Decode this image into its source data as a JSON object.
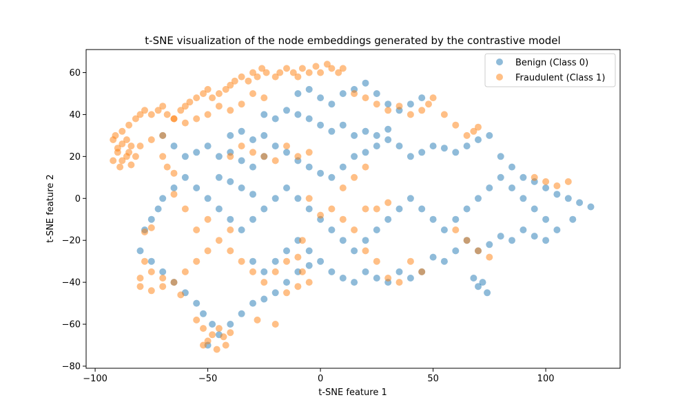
{
  "chart_data": {
    "type": "scatter",
    "title": "t-SNE visualization of the node embeddings generated by the contrastive model",
    "xlabel": "t-SNE feature 1",
    "ylabel": "t-SNE feature 2",
    "xlim": [
      -104,
      133
    ],
    "ylim": [
      -81,
      71
    ],
    "xticks": [
      -100,
      -50,
      0,
      50,
      100
    ],
    "yticks": [
      -80,
      -60,
      -40,
      -20,
      0,
      20,
      40,
      60
    ],
    "grid": false,
    "legend_position": "top-right",
    "series": [
      {
        "name": "Benign (Class 0)",
        "color": "#1f77b4",
        "alpha": 0.5,
        "points": [
          [
            -70,
            30
          ],
          [
            -65,
            25
          ],
          [
            -60,
            20
          ],
          [
            -55,
            22
          ],
          [
            -50,
            25
          ],
          [
            -45,
            20
          ],
          [
            -40,
            22
          ],
          [
            -35,
            18
          ],
          [
            -30,
            15
          ],
          [
            -25,
            20
          ],
          [
            -20,
            25
          ],
          [
            -15,
            22
          ],
          [
            -10,
            18
          ],
          [
            -5,
            15
          ],
          [
            0,
            12
          ],
          [
            5,
            10
          ],
          [
            10,
            15
          ],
          [
            15,
            20
          ],
          [
            20,
            22
          ],
          [
            25,
            25
          ],
          [
            30,
            28
          ],
          [
            35,
            25
          ],
          [
            40,
            20
          ],
          [
            45,
            22
          ],
          [
            50,
            25
          ],
          [
            55,
            24
          ],
          [
            60,
            22
          ],
          [
            65,
            25
          ],
          [
            70,
            28
          ],
          [
            75,
            30
          ],
          [
            80,
            20
          ],
          [
            85,
            15
          ],
          [
            90,
            10
          ],
          [
            95,
            8
          ],
          [
            100,
            5
          ],
          [
            105,
            2
          ],
          [
            110,
            0
          ],
          [
            115,
            -2
          ],
          [
            120,
            -4
          ],
          [
            112,
            -10
          ],
          [
            105,
            -15
          ],
          [
            100,
            -20
          ],
          [
            95,
            -18
          ],
          [
            90,
            -15
          ],
          [
            85,
            -20
          ],
          [
            80,
            -18
          ],
          [
            75,
            -22
          ],
          [
            70,
            -25
          ],
          [
            65,
            -20
          ],
          [
            60,
            -25
          ],
          [
            55,
            -30
          ],
          [
            50,
            -28
          ],
          [
            45,
            -35
          ],
          [
            40,
            -38
          ],
          [
            35,
            -35
          ],
          [
            30,
            -40
          ],
          [
            25,
            -38
          ],
          [
            20,
            -35
          ],
          [
            15,
            -40
          ],
          [
            10,
            -38
          ],
          [
            5,
            -35
          ],
          [
            0,
            -30
          ],
          [
            -5,
            -32
          ],
          [
            -10,
            -35
          ],
          [
            -15,
            -40
          ],
          [
            -20,
            -45
          ],
          [
            -25,
            -48
          ],
          [
            -30,
            -50
          ],
          [
            -35,
            -55
          ],
          [
            -40,
            -60
          ],
          [
            -45,
            -65
          ],
          [
            -50,
            -70
          ],
          [
            -48,
            -60
          ],
          [
            -52,
            -55
          ],
          [
            -55,
            -50
          ],
          [
            -60,
            -45
          ],
          [
            -65,
            -40
          ],
          [
            -70,
            -35
          ],
          [
            -75,
            -30
          ],
          [
            -80,
            -25
          ],
          [
            -78,
            -15
          ],
          [
            -75,
            -10
          ],
          [
            -72,
            -5
          ],
          [
            -70,
            0
          ],
          [
            -65,
            5
          ],
          [
            -60,
            10
          ],
          [
            -55,
            5
          ],
          [
            -50,
            0
          ],
          [
            -45,
            -5
          ],
          [
            -40,
            -10
          ],
          [
            -35,
            -15
          ],
          [
            -30,
            -10
          ],
          [
            -25,
            -5
          ],
          [
            -20,
            0
          ],
          [
            -15,
            5
          ],
          [
            -10,
            0
          ],
          [
            -5,
            -5
          ],
          [
            0,
            -10
          ],
          [
            5,
            -15
          ],
          [
            10,
            -20
          ],
          [
            15,
            -25
          ],
          [
            20,
            -20
          ],
          [
            25,
            -15
          ],
          [
            30,
            -10
          ],
          [
            35,
            -5
          ],
          [
            40,
            0
          ],
          [
            45,
            -5
          ],
          [
            50,
            -10
          ],
          [
            55,
            -15
          ],
          [
            60,
            -10
          ],
          [
            65,
            -5
          ],
          [
            70,
            0
          ],
          [
            75,
            5
          ],
          [
            80,
            10
          ],
          [
            85,
            5
          ],
          [
            90,
            0
          ],
          [
            95,
            -5
          ],
          [
            100,
            -10
          ],
          [
            -10,
            50
          ],
          [
            -5,
            52
          ],
          [
            0,
            48
          ],
          [
            5,
            45
          ],
          [
            10,
            50
          ],
          [
            15,
            52
          ],
          [
            20,
            55
          ],
          [
            25,
            50
          ],
          [
            30,
            45
          ],
          [
            35,
            42
          ],
          [
            40,
            45
          ],
          [
            45,
            48
          ],
          [
            -25,
            40
          ],
          [
            -20,
            38
          ],
          [
            -15,
            42
          ],
          [
            -10,
            40
          ],
          [
            -5,
            38
          ],
          [
            0,
            35
          ],
          [
            5,
            32
          ],
          [
            10,
            35
          ],
          [
            15,
            30
          ],
          [
            20,
            32
          ],
          [
            25,
            30
          ],
          [
            30,
            33
          ],
          [
            -40,
            30
          ],
          [
            -35,
            32
          ],
          [
            -30,
            28
          ],
          [
            -25,
            30
          ],
          [
            -45,
            10
          ],
          [
            -40,
            8
          ],
          [
            -35,
            5
          ],
          [
            -30,
            2
          ],
          [
            72,
            -40
          ],
          [
            74,
            -45
          ],
          [
            70,
            -42
          ],
          [
            68,
            -38
          ],
          [
            -30,
            -30
          ],
          [
            -25,
            -35
          ],
          [
            -20,
            -30
          ],
          [
            -15,
            -25
          ],
          [
            -10,
            -20
          ],
          [
            -5,
            -25
          ]
        ]
      },
      {
        "name": "Fraudulent (Class 1)",
        "color": "#ff7f0e",
        "alpha": 0.5,
        "points": [
          [
            -92,
            18
          ],
          [
            -90,
            22
          ],
          [
            -88,
            26
          ],
          [
            -91,
            30
          ],
          [
            -89,
            15
          ],
          [
            -86,
            20
          ],
          [
            -84,
            25
          ],
          [
            -92,
            28
          ],
          [
            -88,
            32
          ],
          [
            -85,
            35
          ],
          [
            -82,
            38
          ],
          [
            -80,
            40
          ],
          [
            -78,
            42
          ],
          [
            -75,
            40
          ],
          [
            -72,
            42
          ],
          [
            -70,
            44
          ],
          [
            -68,
            40
          ],
          [
            -65,
            38
          ],
          [
            -62,
            42
          ],
          [
            -60,
            44
          ],
          [
            -58,
            46
          ],
          [
            -55,
            48
          ],
          [
            -52,
            50
          ],
          [
            -50,
            52
          ],
          [
            -48,
            48
          ],
          [
            -45,
            50
          ],
          [
            -42,
            52
          ],
          [
            -40,
            54
          ],
          [
            -38,
            56
          ],
          [
            -35,
            58
          ],
          [
            -32,
            56
          ],
          [
            -30,
            60
          ],
          [
            -28,
            58
          ],
          [
            -26,
            62
          ],
          [
            -24,
            60
          ],
          [
            -20,
            58
          ],
          [
            -18,
            60
          ],
          [
            -15,
            62
          ],
          [
            -12,
            60
          ],
          [
            -10,
            58
          ],
          [
            -8,
            62
          ],
          [
            -5,
            60
          ],
          [
            -2,
            63
          ],
          [
            0,
            60
          ],
          [
            3,
            64
          ],
          [
            5,
            62
          ],
          [
            8,
            60
          ],
          [
            10,
            62
          ],
          [
            -30,
            50
          ],
          [
            -25,
            48
          ],
          [
            -35,
            45
          ],
          [
            -40,
            42
          ],
          [
            -45,
            44
          ],
          [
            -50,
            40
          ],
          [
            -55,
            38
          ],
          [
            -60,
            36
          ],
          [
            -65,
            38
          ],
          [
            -70,
            30
          ],
          [
            -75,
            28
          ],
          [
            -80,
            25
          ],
          [
            -85,
            22
          ],
          [
            -88,
            18
          ],
          [
            -90,
            24
          ],
          [
            -86,
            28
          ],
          [
            -84,
            16
          ],
          [
            -82,
            20
          ],
          [
            -52,
            -70
          ],
          [
            -50,
            -68
          ],
          [
            -48,
            -65
          ],
          [
            -45,
            -62
          ],
          [
            -43,
            -66
          ],
          [
            -40,
            -64
          ],
          [
            -46,
            -72
          ],
          [
            -52,
            -62
          ],
          [
            -55,
            -58
          ],
          [
            -42,
            -70
          ],
          [
            -62,
            -46
          ],
          [
            -70,
            -38
          ],
          [
            -80,
            -38
          ],
          [
            -75,
            -35
          ],
          [
            -75,
            -14
          ],
          [
            -78,
            -16
          ],
          [
            -60,
            -5
          ],
          [
            -55,
            -15
          ],
          [
            -50,
            -10
          ],
          [
            -65,
            2
          ],
          [
            -68,
            15
          ],
          [
            -70,
            20
          ],
          [
            -65,
            12
          ],
          [
            -40,
            -25
          ],
          [
            -35,
            -30
          ],
          [
            -30,
            -35
          ],
          [
            -25,
            -40
          ],
          [
            -20,
            -60
          ],
          [
            -28,
            -58
          ],
          [
            -15,
            -45
          ],
          [
            -10,
            -42
          ],
          [
            -8,
            -35
          ],
          [
            -5,
            -40
          ],
          [
            -8,
            -20
          ],
          [
            5,
            -5
          ],
          [
            10,
            -10
          ],
          [
            15,
            -15
          ],
          [
            20,
            -25
          ],
          [
            25,
            -30
          ],
          [
            30,
            -38
          ],
          [
            35,
            -40
          ],
          [
            40,
            -30
          ],
          [
            45,
            -35
          ],
          [
            20,
            -5
          ],
          [
            25,
            -5
          ],
          [
            30,
            -2
          ],
          [
            0,
            -8
          ],
          [
            -5,
            0
          ],
          [
            10,
            5
          ],
          [
            15,
            10
          ],
          [
            20,
            15
          ],
          [
            -40,
            20
          ],
          [
            -35,
            25
          ],
          [
            -30,
            22
          ],
          [
            -25,
            20
          ],
          [
            -20,
            18
          ],
          [
            -15,
            25
          ],
          [
            -10,
            20
          ],
          [
            -5,
            22
          ],
          [
            40,
            40
          ],
          [
            45,
            42
          ],
          [
            48,
            45
          ],
          [
            50,
            48
          ],
          [
            55,
            40
          ],
          [
            60,
            35
          ],
          [
            65,
            30
          ],
          [
            68,
            32
          ],
          [
            70,
            34
          ],
          [
            30,
            42
          ],
          [
            35,
            44
          ],
          [
            25,
            45
          ],
          [
            20,
            48
          ],
          [
            15,
            50
          ],
          [
            -40,
            -15
          ],
          [
            -45,
            -20
          ],
          [
            -50,
            -25
          ],
          [
            -55,
            -30
          ],
          [
            -60,
            -35
          ],
          [
            -65,
            -40
          ],
          [
            -70,
            -42
          ],
          [
            -75,
            -44
          ],
          [
            -78,
            -30
          ],
          [
            -80,
            -42
          ],
          [
            -20,
            -35
          ],
          [
            -15,
            -30
          ],
          [
            -10,
            -28
          ],
          [
            95,
            10
          ],
          [
            100,
            8
          ],
          [
            105,
            6
          ],
          [
            110,
            8
          ],
          [
            60,
            -15
          ],
          [
            65,
            -20
          ],
          [
            70,
            -25
          ],
          [
            75,
            -28
          ]
        ]
      }
    ]
  }
}
